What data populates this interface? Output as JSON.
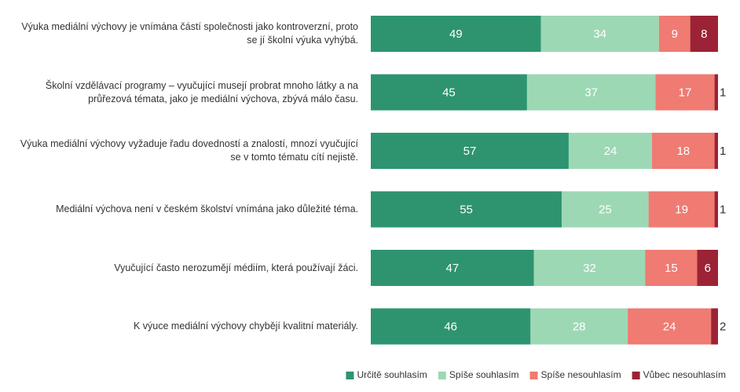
{
  "chart_data": {
    "type": "stacked-bar",
    "categories": [
      "Výuka mediální výchovy je vnímána částí společnosti jako kontroverzní, proto se jí školní výuka vyhýbá.",
      "Školní vzdělávací programy – vyučující musejí probrat mnoho látky a na průřezová témata, jako je mediální výchova, zbývá málo času.",
      "Výuka mediální výchovy vyžaduje řadu dovedností a znalostí, mnozí vyučující se v tomto tématu cítí nejistě.",
      "Mediální výchova není v českém školství vnímána jako důležité téma.",
      "Vyučující často nerozumějí médiím, která používají žáci.",
      "K výuce mediální výchovy chybějí kvalitní materiály."
    ],
    "series": [
      {
        "name": "Určitě souhlasím",
        "color": "#2e9470",
        "values": [
          49,
          45,
          57,
          55,
          47,
          46
        ]
      },
      {
        "name": "Spíše souhlasím",
        "color": "#9dd8b5",
        "values": [
          34,
          37,
          24,
          25,
          32,
          28
        ]
      },
      {
        "name": "Spíše nesouhlasím",
        "color": "#ef7b72",
        "values": [
          9,
          17,
          18,
          19,
          15,
          24
        ]
      },
      {
        "name": "Vůbec nesouhlasím",
        "color": "#9b2335",
        "values": [
          8,
          1,
          1,
          1,
          6,
          2
        ]
      }
    ],
    "xlim": [
      0,
      100
    ],
    "legend": "bottom-right"
  }
}
